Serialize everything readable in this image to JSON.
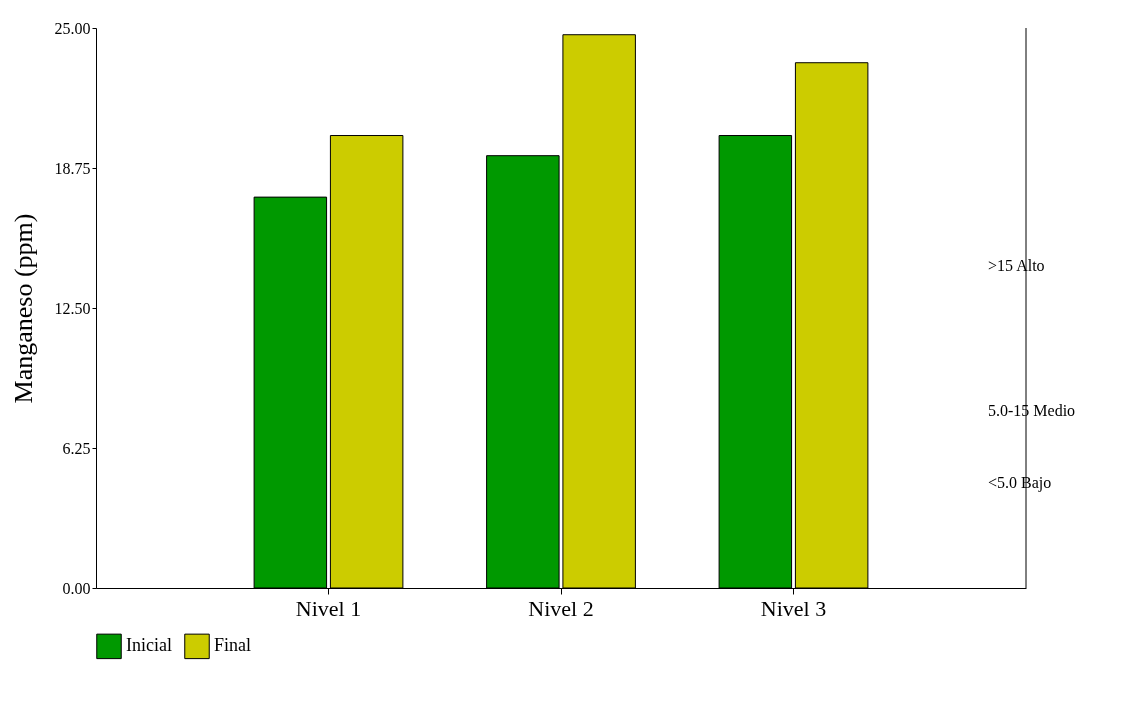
{
  "chart_data": {
    "type": "bar",
    "ylabel": "Manganeso (ppm)",
    "categories": [
      "Nivel 1",
      "Nivel 2",
      "Nivel 3"
    ],
    "series": [
      {
        "name": "Inicial",
        "color": "#009900",
        "values": [
          17.45,
          19.3,
          20.2
        ]
      },
      {
        "name": "Final",
        "color": "#cccc00",
        "values": [
          20.2,
          24.7,
          23.45
        ]
      }
    ],
    "ylim": [
      0,
      25
    ],
    "yticks": [
      {
        "value": 0,
        "label": "0.00"
      },
      {
        "value": 6.25,
        "label": "6.25"
      },
      {
        "value": 12.5,
        "label": "12.50"
      },
      {
        "value": 18.75,
        "label": "18.75"
      },
      {
        "value": 25,
        "label": "25.00"
      }
    ],
    "grid": false,
    "legend": "bottom",
    "annotations": [
      ">15 Alto",
      "5.0-15 Medio",
      "<5.0 Bajo"
    ]
  }
}
